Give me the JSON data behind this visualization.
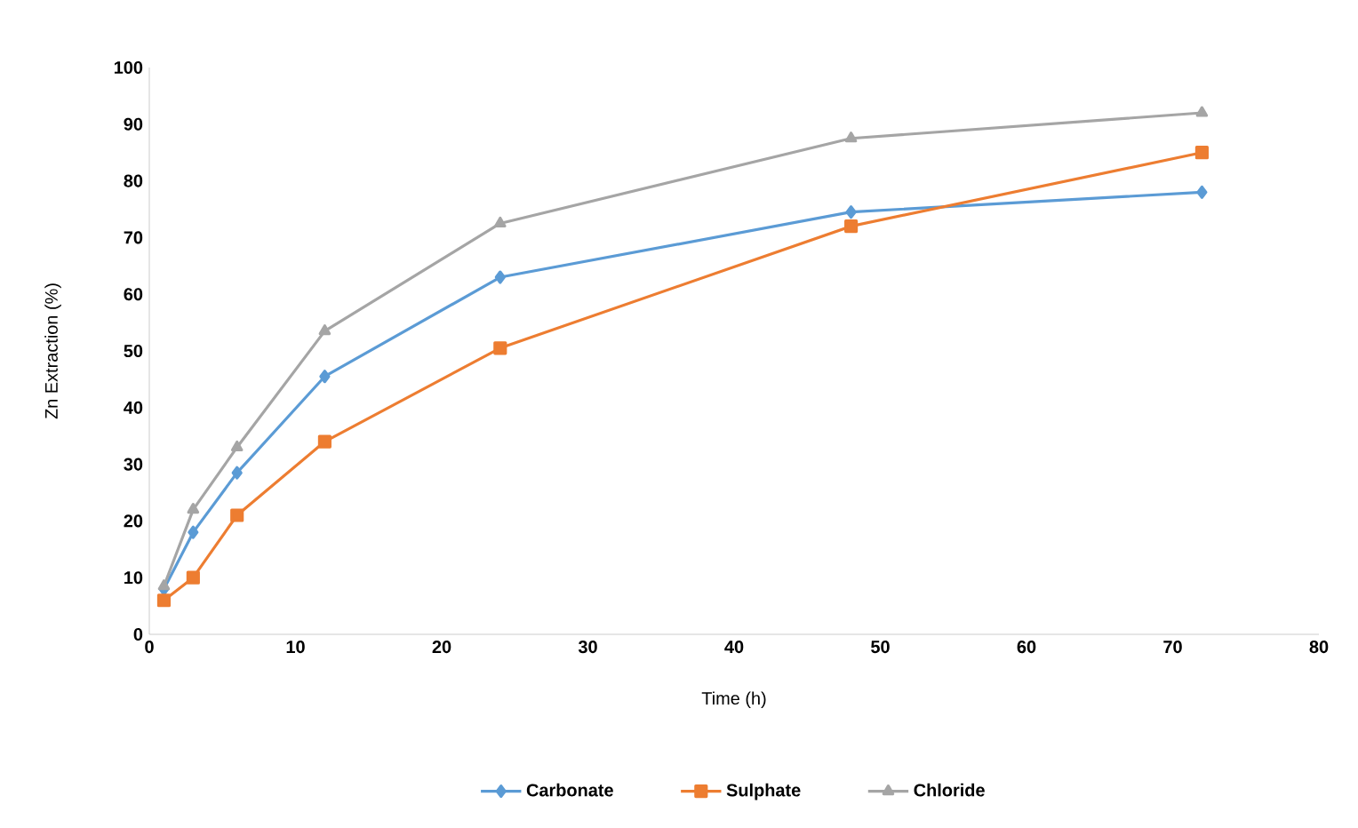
{
  "chart_data": {
    "type": "line",
    "xlabel": "Time (h)",
    "ylabel": "Zn Extraction (%)",
    "x": [
      1,
      3,
      6,
      12,
      24,
      48,
      72
    ],
    "series": [
      {
        "name": "Carbonate",
        "color": "#5b9bd5",
        "marker": "diamond",
        "values": [
          8,
          18,
          28.5,
          45.5,
          63,
          74.5,
          78
        ]
      },
      {
        "name": "Sulphate",
        "color": "#ed7d31",
        "marker": "square",
        "values": [
          6,
          10,
          21,
          34,
          50.5,
          72,
          85
        ]
      },
      {
        "name": "Chloride",
        "color": "#a5a5a5",
        "marker": "triangle",
        "values": [
          8.5,
          22,
          33,
          53.5,
          72.5,
          87.5,
          92
        ]
      }
    ],
    "xlim": [
      0,
      80
    ],
    "ylim": [
      0,
      100
    ],
    "xticks": [
      0,
      10,
      20,
      30,
      40,
      50,
      60,
      70,
      80
    ],
    "yticks": [
      0,
      10,
      20,
      30,
      40,
      50,
      60,
      70,
      80,
      90,
      100
    ],
    "grid": false,
    "legend": "bottom",
    "line_style": "solid"
  }
}
